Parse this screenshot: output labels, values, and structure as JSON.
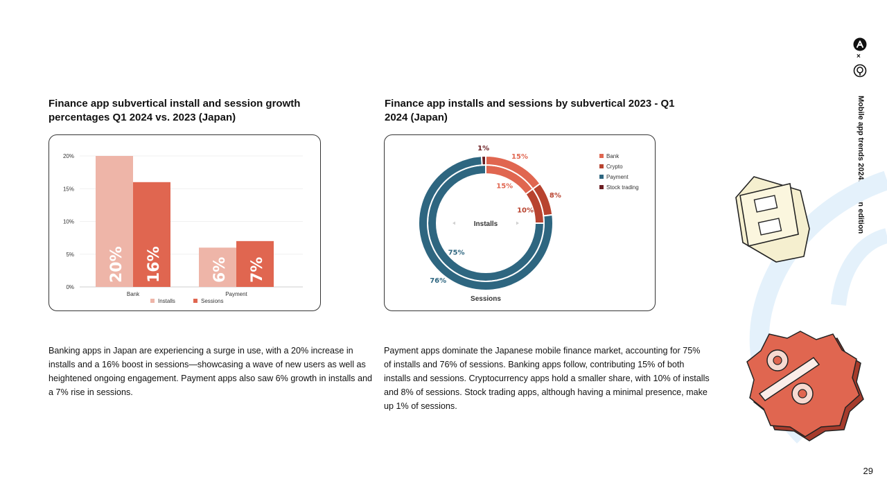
{
  "page": {
    "side_title": "Mobile app trends 2024: Japan edition",
    "page_number": "29",
    "logo_separator": "×"
  },
  "left": {
    "title": "Finance app subvertical install and session growth percentages Q1 2024 vs. 2023 (Japan)",
    "body": "Banking apps in Japan are experiencing a surge in use, with a 20% increase in installs and a 16% boost in sessions—showcasing a wave of new users as well as heightened ongoing engagement. Payment apps also saw 6% growth in installs and a 7% rise in sessions."
  },
  "right": {
    "title": "Finance app installs and sessions by subvertical 2023 - Q1 2024 (Japan)",
    "body": "Payment apps dominate the Japanese mobile finance market, accounting for 75% of installs and 76% of sessions. Banking apps follow, contributing 15% of both installs and sessions. Cryptocurrency apps hold a smaller share, with 10% of installs and 8% of sessions. Stock trading apps, although having a minimal presence, make up 1% of sessions."
  },
  "chart_data": [
    {
      "type": "bar",
      "categories": [
        "Bank",
        "Payment"
      ],
      "series": [
        {
          "name": "Installs",
          "values": [
            20,
            6
          ],
          "labels": [
            "20%",
            "6%"
          ],
          "color": "#EEB5A8"
        },
        {
          "name": "Sessions",
          "values": [
            16,
            7
          ],
          "labels": [
            "16%",
            "7%"
          ],
          "color": "#E06650"
        }
      ],
      "yticks": [
        0,
        5,
        10,
        15,
        20
      ],
      "ytick_labels": [
        "0%",
        "5%",
        "10%",
        "15%",
        "20%"
      ],
      "ylim": [
        0,
        20
      ],
      "legend_position": "bottom"
    },
    {
      "type": "pie",
      "rings": [
        {
          "name": "Installs",
          "label": "Installs",
          "values": [
            15,
            10,
            75
          ],
          "labels": [
            "15%",
            "10%",
            "75%"
          ]
        },
        {
          "name": "Sessions",
          "label": "Sessions",
          "values": [
            15,
            8,
            76,
            1
          ],
          "labels": [
            "15%",
            "8%",
            "76%",
            "1%"
          ]
        }
      ],
      "categories": [
        "Bank",
        "Crypto",
        "Payment",
        "Stock trading"
      ],
      "colors": [
        "#E06650",
        "#B8432F",
        "#2E6680",
        "#6B1E22"
      ],
      "legend_position": "top-right"
    }
  ]
}
